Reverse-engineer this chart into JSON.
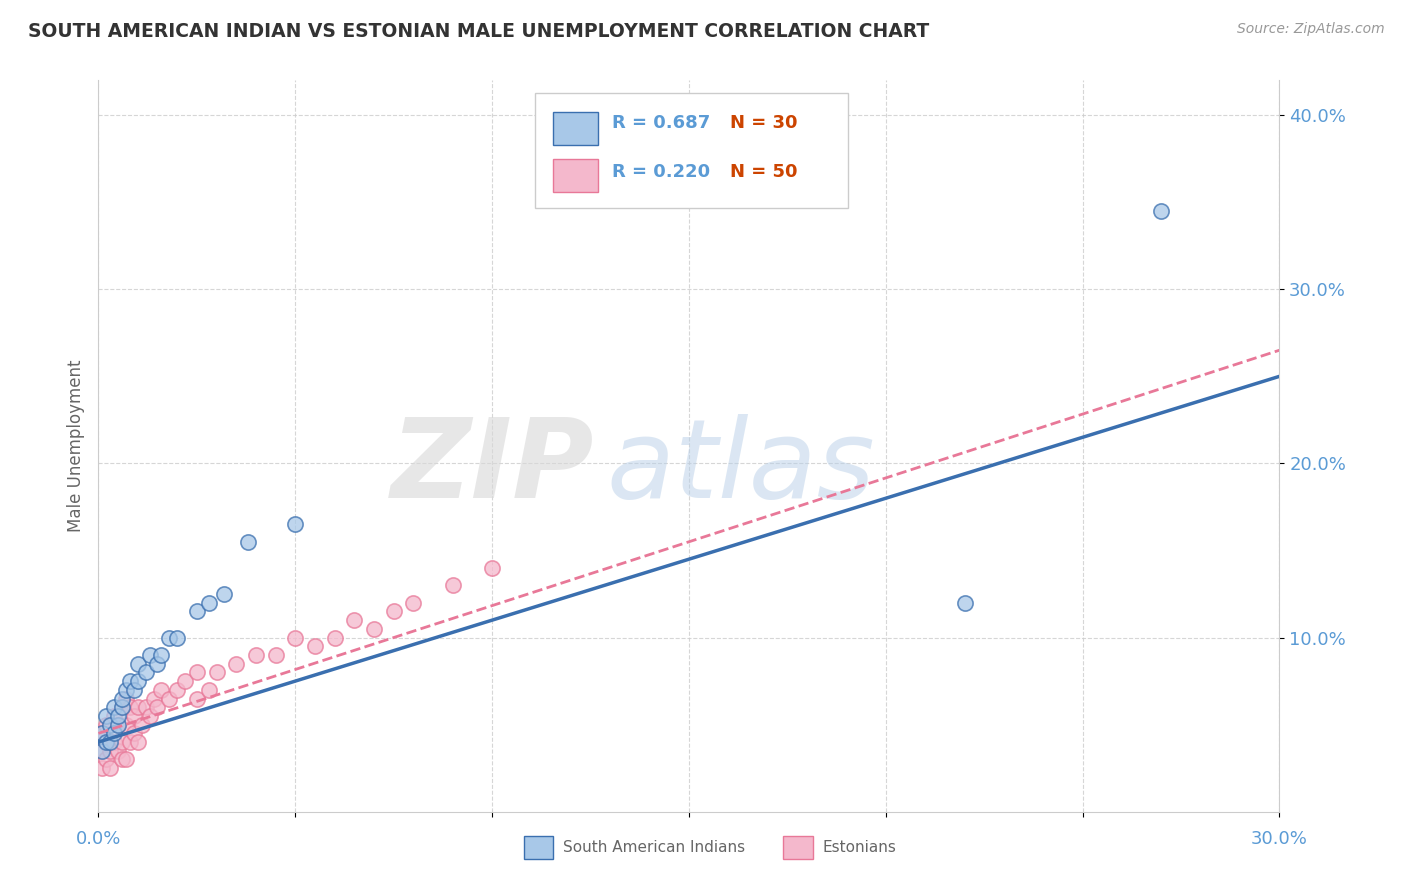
{
  "title": "SOUTH AMERICAN INDIAN VS ESTONIAN MALE UNEMPLOYMENT CORRELATION CHART",
  "source": "Source: ZipAtlas.com",
  "ylabel": "Male Unemployment",
  "xlim": [
    0.0,
    0.3
  ],
  "ylim": [
    0.0,
    0.42
  ],
  "yticks": [
    0.1,
    0.2,
    0.3,
    0.4
  ],
  "ytick_labels": [
    "10.0%",
    "20.0%",
    "30.0%",
    "40.0%"
  ],
  "color_blue": "#a8c8e8",
  "color_pink": "#f4b8cc",
  "color_blue_line": "#3a6faf",
  "color_pink_line": "#e87898",
  "bg_color": "#ffffff",
  "grid_color": "#cccccc",
  "title_color": "#333333",
  "axis_label_color": "#666666",
  "tick_label_color": "#5b9bd5",
  "sai_x": [
    0.001,
    0.001,
    0.002,
    0.002,
    0.003,
    0.003,
    0.004,
    0.004,
    0.005,
    0.005,
    0.006,
    0.006,
    0.007,
    0.008,
    0.009,
    0.01,
    0.01,
    0.012,
    0.013,
    0.015,
    0.016,
    0.018,
    0.02,
    0.025,
    0.028,
    0.032,
    0.038,
    0.05,
    0.22,
    0.27
  ],
  "sai_y": [
    0.035,
    0.045,
    0.04,
    0.055,
    0.04,
    0.05,
    0.045,
    0.06,
    0.05,
    0.055,
    0.06,
    0.065,
    0.07,
    0.075,
    0.07,
    0.075,
    0.085,
    0.08,
    0.09,
    0.085,
    0.09,
    0.1,
    0.1,
    0.115,
    0.12,
    0.125,
    0.155,
    0.165,
    0.12,
    0.345
  ],
  "est_x": [
    0.001,
    0.001,
    0.001,
    0.002,
    0.002,
    0.002,
    0.003,
    0.003,
    0.003,
    0.004,
    0.004,
    0.005,
    0.005,
    0.006,
    0.006,
    0.006,
    0.007,
    0.007,
    0.007,
    0.008,
    0.008,
    0.009,
    0.009,
    0.01,
    0.01,
    0.011,
    0.012,
    0.013,
    0.014,
    0.015,
    0.016,
    0.018,
    0.02,
    0.022,
    0.025,
    0.025,
    0.028,
    0.03,
    0.035,
    0.04,
    0.045,
    0.05,
    0.055,
    0.06,
    0.065,
    0.07,
    0.075,
    0.08,
    0.09,
    0.1
  ],
  "est_y": [
    0.025,
    0.035,
    0.045,
    0.03,
    0.04,
    0.05,
    0.025,
    0.035,
    0.05,
    0.04,
    0.055,
    0.035,
    0.05,
    0.03,
    0.04,
    0.06,
    0.03,
    0.05,
    0.065,
    0.04,
    0.06,
    0.045,
    0.055,
    0.04,
    0.06,
    0.05,
    0.06,
    0.055,
    0.065,
    0.06,
    0.07,
    0.065,
    0.07,
    0.075,
    0.065,
    0.08,
    0.07,
    0.08,
    0.085,
    0.09,
    0.09,
    0.1,
    0.095,
    0.1,
    0.11,
    0.105,
    0.115,
    0.12,
    0.13,
    0.14
  ],
  "sai_line_x0": 0.0,
  "sai_line_y0": 0.04,
  "sai_line_x1": 0.3,
  "sai_line_y1": 0.25,
  "est_line_x0": 0.0,
  "est_line_y0": 0.045,
  "est_line_x1": 0.3,
  "est_line_y1": 0.265
}
